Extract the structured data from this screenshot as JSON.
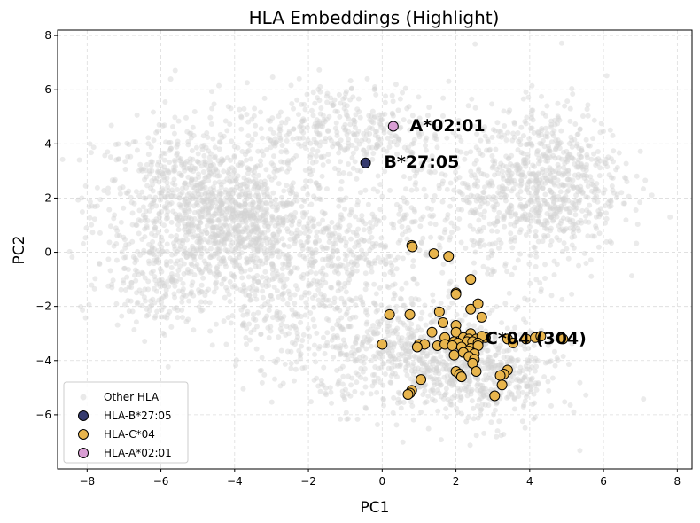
{
  "chart_data": {
    "type": "scatter",
    "title": "HLA Embeddings (Highlight)",
    "xlabel": "PC1",
    "ylabel": "PC2",
    "xlim": [
      -8.8,
      8.4
    ],
    "ylim": [
      -8.0,
      8.2
    ],
    "xticks": [
      -8,
      -6,
      -4,
      -2,
      0,
      2,
      4,
      6,
      8
    ],
    "yticks": [
      -6,
      -4,
      -2,
      0,
      2,
      4,
      6,
      8
    ],
    "xtick_labels": [
      "−8",
      "−6",
      "−4",
      "−2",
      "0",
      "2",
      "4",
      "6",
      "8"
    ],
    "ytick_labels": [
      "−6",
      "−4",
      "−2",
      "0",
      "2",
      "4",
      "6",
      "8"
    ],
    "grid": true,
    "legend_position": "lower-left",
    "background_series": {
      "name": "Other HLA",
      "color": "#d3d3d3",
      "clusters": [
        {
          "cx": -5.0,
          "cy": 1.8,
          "sx": 1.4,
          "sy": 1.5,
          "n": 900
        },
        {
          "cx": -3.6,
          "cy": 0.8,
          "sx": 1.0,
          "sy": 1.0,
          "n": 450
        },
        {
          "cx": -6.0,
          "cy": -1.2,
          "sx": 0.8,
          "sy": 0.8,
          "n": 180
        },
        {
          "cx": -1.0,
          "cy": 4.5,
          "sx": 1.4,
          "sy": 0.9,
          "n": 380
        },
        {
          "cx": 4.5,
          "cy": 2.7,
          "sx": 1.0,
          "sy": 1.4,
          "n": 650
        },
        {
          "cx": 0.8,
          "cy": -3.8,
          "sx": 1.3,
          "sy": 1.0,
          "n": 550
        },
        {
          "cx": 2.8,
          "cy": -4.6,
          "sx": 1.0,
          "sy": 0.9,
          "n": 400
        },
        {
          "cx": -2.3,
          "cy": -2.0,
          "sx": 1.1,
          "sy": 1.3,
          "n": 300
        },
        {
          "cx": 2.5,
          "cy": 1.5,
          "sx": 1.5,
          "sy": 1.5,
          "n": 350
        },
        {
          "cx": -0.8,
          "cy": 0.2,
          "sx": 1.0,
          "sy": 1.2,
          "n": 250
        }
      ]
    },
    "series": [
      {
        "name": "HLA-B*27:05",
        "legend_label": "HLA-B*27:05",
        "color": "#353a6e",
        "points": [
          [
            -0.45,
            3.3
          ]
        ],
        "annotation": "B*27:05",
        "annotation_at": [
          0.05,
          3.35
        ]
      },
      {
        "name": "HLA-C*04",
        "legend_label": "HLA-C*04",
        "color": "#e8b54d",
        "points": [
          [
            0.8,
            0.25
          ],
          [
            0.82,
            0.2
          ],
          [
            1.4,
            -0.05
          ],
          [
            1.8,
            -0.15
          ],
          [
            2.4,
            -1.0
          ],
          [
            2.0,
            -1.5
          ],
          [
            2.0,
            -1.55
          ],
          [
            2.4,
            -2.1
          ],
          [
            2.6,
            -1.9
          ],
          [
            2.7,
            -2.4
          ],
          [
            0.2,
            -2.3
          ],
          [
            0.75,
            -2.3
          ],
          [
            1.55,
            -2.2
          ],
          [
            1.65,
            -2.6
          ],
          [
            2.0,
            -2.7
          ],
          [
            1.35,
            -2.95
          ],
          [
            2.0,
            -2.95
          ],
          [
            2.4,
            -3.0
          ],
          [
            1.7,
            -3.15
          ],
          [
            2.2,
            -3.15
          ],
          [
            2.35,
            -3.2
          ],
          [
            2.55,
            -3.2
          ],
          [
            2.8,
            -3.15
          ],
          [
            2.7,
            -3.1
          ],
          [
            3.4,
            -3.2
          ],
          [
            3.9,
            -3.2
          ],
          [
            4.15,
            -3.15
          ],
          [
            4.3,
            -3.1
          ],
          [
            4.9,
            -3.2
          ],
          [
            3.55,
            -3.35
          ],
          [
            1.95,
            -3.3
          ],
          [
            2.05,
            -3.35
          ],
          [
            2.3,
            -3.3
          ],
          [
            2.45,
            -3.3
          ],
          [
            2.6,
            -3.35
          ],
          [
            0.0,
            -3.4
          ],
          [
            1.0,
            -3.4
          ],
          [
            1.15,
            -3.4
          ],
          [
            1.5,
            -3.45
          ],
          [
            1.7,
            -3.4
          ],
          [
            1.9,
            -3.45
          ],
          [
            2.15,
            -3.5
          ],
          [
            2.4,
            -3.55
          ],
          [
            2.6,
            -3.45
          ],
          [
            0.95,
            -3.5
          ],
          [
            2.35,
            -3.65
          ],
          [
            2.2,
            -3.7
          ],
          [
            2.5,
            -3.75
          ],
          [
            2.35,
            -3.85
          ],
          [
            1.95,
            -3.8
          ],
          [
            2.5,
            -3.95
          ],
          [
            2.45,
            -4.1
          ],
          [
            2.0,
            -4.4
          ],
          [
            2.1,
            -4.5
          ],
          [
            2.55,
            -4.4
          ],
          [
            2.15,
            -4.6
          ],
          [
            1.05,
            -4.7
          ],
          [
            3.4,
            -4.35
          ],
          [
            3.3,
            -4.5
          ],
          [
            3.2,
            -4.55
          ],
          [
            3.25,
            -4.9
          ],
          [
            0.8,
            -5.1
          ],
          [
            0.75,
            -5.2
          ],
          [
            0.7,
            -5.25
          ],
          [
            3.05,
            -5.3
          ]
        ],
        "annotation": "C*04 (304)",
        "annotation_at": [
          2.8,
          -3.15
        ]
      },
      {
        "name": "HLA-A*02:01",
        "legend_label": "HLA-A*02:01",
        "color": "#d99ed4",
        "points": [
          [
            0.3,
            4.65
          ]
        ],
        "annotation": "A*02:01",
        "annotation_at": [
          0.75,
          4.7
        ]
      }
    ]
  }
}
